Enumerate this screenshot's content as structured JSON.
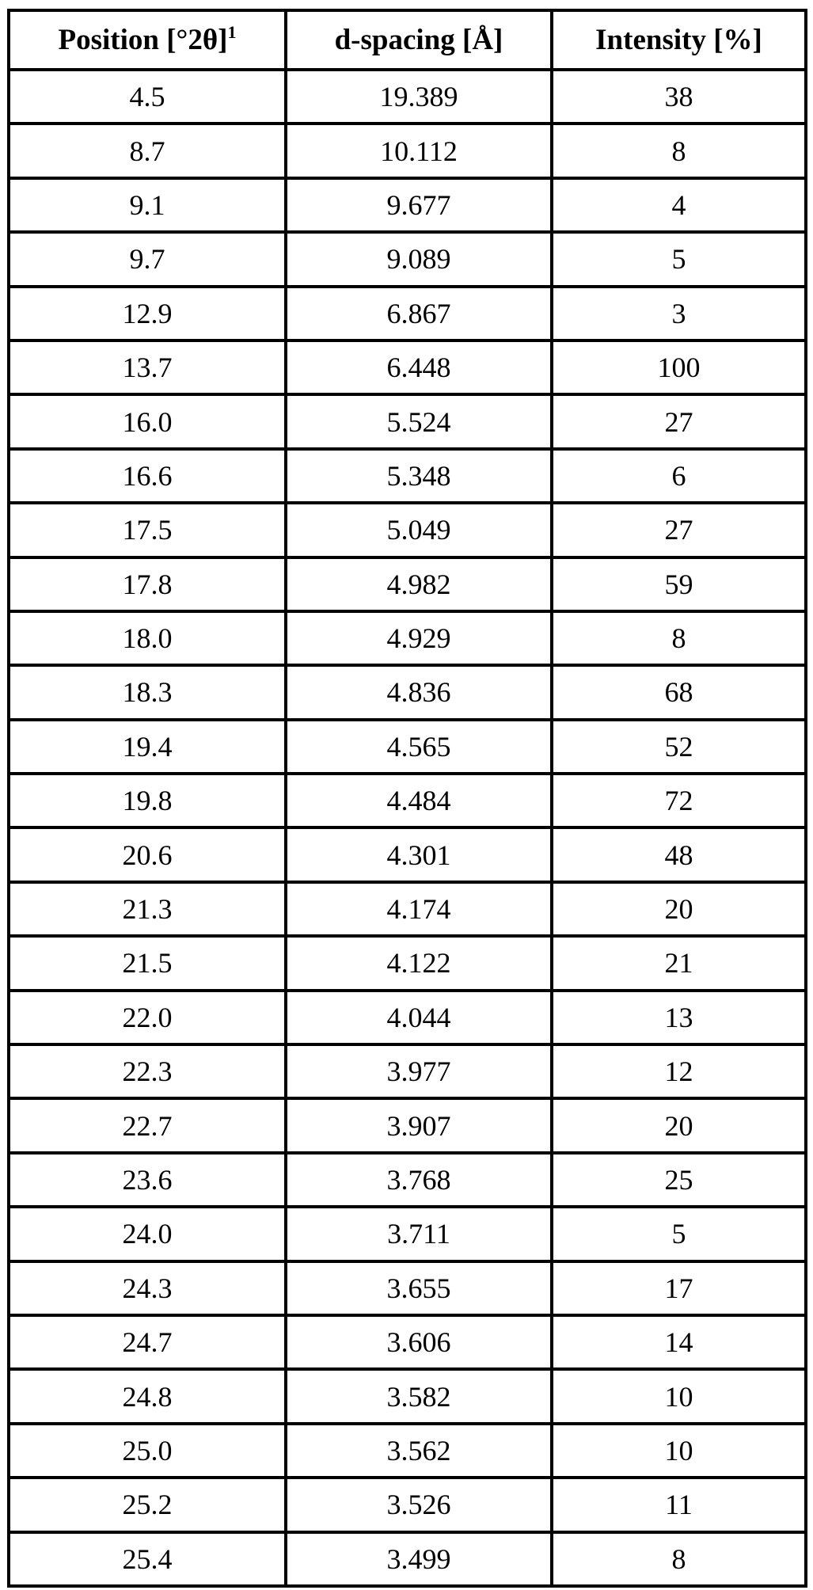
{
  "table": {
    "headers": [
      {
        "label": "Position [°2θ]",
        "superscript": "1"
      },
      {
        "label": "d-spacing [Å]",
        "superscript": ""
      },
      {
        "label": "Intensity [%]",
        "superscript": ""
      }
    ],
    "rows": [
      [
        "4.5",
        "19.389",
        "38"
      ],
      [
        "8.7",
        "10.112",
        "8"
      ],
      [
        "9.1",
        "9.677",
        "4"
      ],
      [
        "9.7",
        "9.089",
        "5"
      ],
      [
        "12.9",
        "6.867",
        "3"
      ],
      [
        "13.7",
        "6.448",
        "100"
      ],
      [
        "16.0",
        "5.524",
        "27"
      ],
      [
        "16.6",
        "5.348",
        "6"
      ],
      [
        "17.5",
        "5.049",
        "27"
      ],
      [
        "17.8",
        "4.982",
        "59"
      ],
      [
        "18.0",
        "4.929",
        "8"
      ],
      [
        "18.3",
        "4.836",
        "68"
      ],
      [
        "19.4",
        "4.565",
        "52"
      ],
      [
        "19.8",
        "4.484",
        "72"
      ],
      [
        "20.6",
        "4.301",
        "48"
      ],
      [
        "21.3",
        "4.174",
        "20"
      ],
      [
        "21.5",
        "4.122",
        "21"
      ],
      [
        "22.0",
        "4.044",
        "13"
      ],
      [
        "22.3",
        "3.977",
        "12"
      ],
      [
        "22.7",
        "3.907",
        "20"
      ],
      [
        "23.6",
        "3.768",
        "25"
      ],
      [
        "24.0",
        "3.711",
        "5"
      ],
      [
        "24.3",
        "3.655",
        "17"
      ],
      [
        "24.7",
        "3.606",
        "14"
      ],
      [
        "24.8",
        "3.582",
        "10"
      ],
      [
        "25.0",
        "3.562",
        "10"
      ],
      [
        "25.2",
        "3.526",
        "11"
      ],
      [
        "25.4",
        "3.499",
        "8"
      ]
    ]
  }
}
